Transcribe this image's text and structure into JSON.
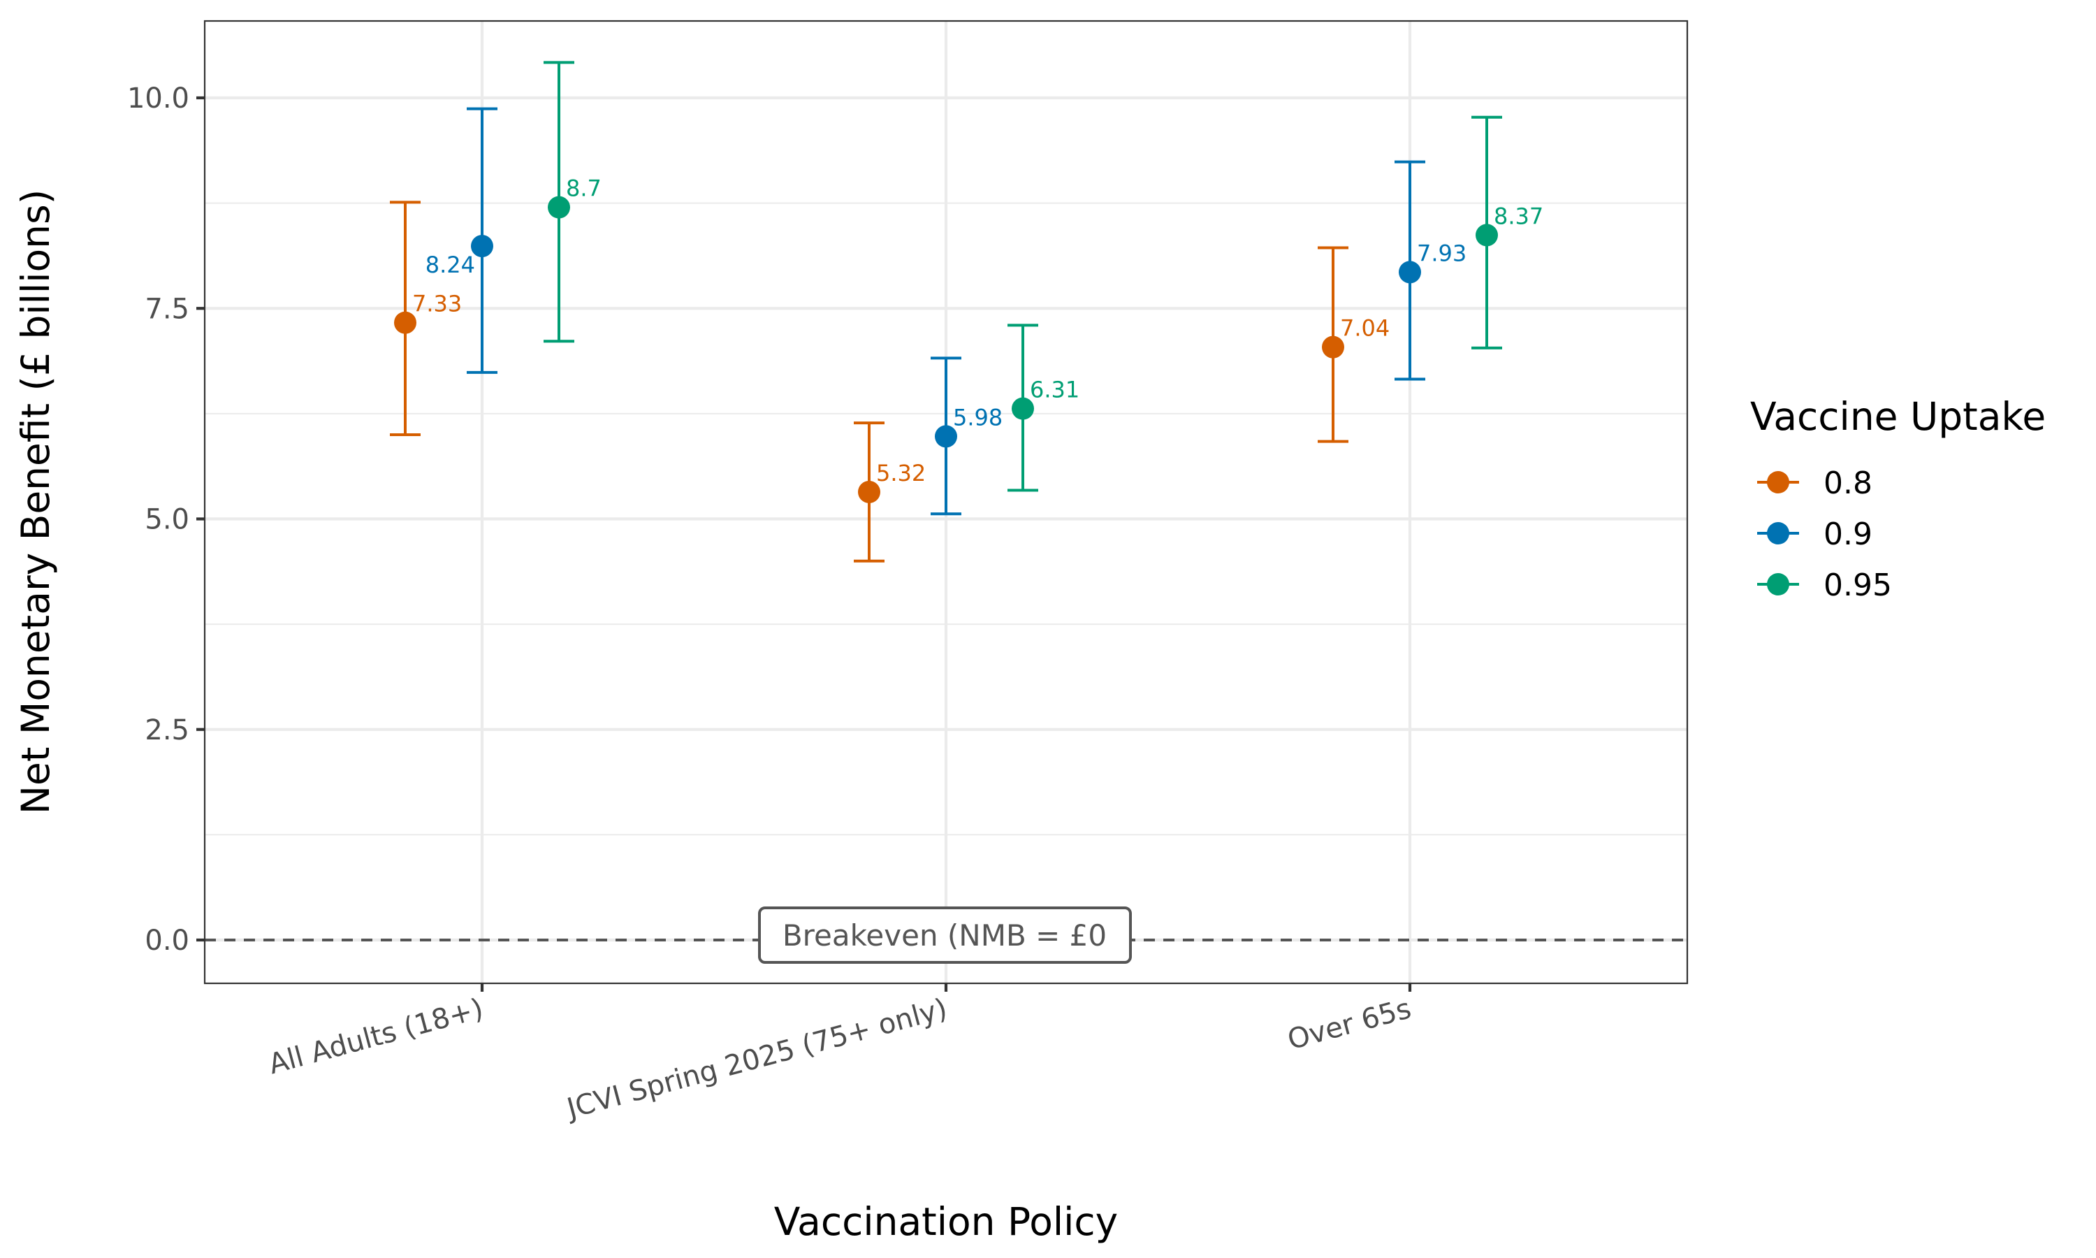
{
  "chart_data": {
    "type": "scatter",
    "subtype": "point-with-error-bars",
    "title": "",
    "xlabel": "Vaccination Policy",
    "ylabel": "Net Monetary Benefit (£ billions)",
    "categories": [
      "All Adults (18+)",
      "JCVI Spring 2025 (75+ only)",
      "Over 65s"
    ],
    "ylim": [
      -0.5,
      10.9
    ],
    "yticks": [
      0.0,
      2.5,
      5.0,
      7.5,
      10.0
    ],
    "ytick_labels": [
      "0.0",
      "2.5",
      "5.0",
      "7.5",
      "10.0"
    ],
    "grid": true,
    "legend": {
      "title": "Vaccine Uptake",
      "position": "right"
    },
    "series": [
      {
        "name": "0.8",
        "color": "#D55E00",
        "values": [
          7.33,
          5.32,
          7.04
        ],
        "lower": [
          6.0,
          4.5,
          5.92
        ],
        "upper": [
          8.76,
          6.14,
          8.22
        ],
        "labels": [
          "7.33",
          "5.32",
          "7.04"
        ]
      },
      {
        "name": "0.9",
        "color": "#0072B2",
        "values": [
          8.24,
          5.98,
          7.93
        ],
        "lower": [
          6.74,
          5.06,
          6.66
        ],
        "upper": [
          9.87,
          6.91,
          9.24
        ],
        "labels": [
          "8.24",
          "5.98",
          "7.93"
        ]
      },
      {
        "name": "0.95",
        "color": "#009E73",
        "values": [
          8.7,
          6.31,
          8.37
        ],
        "lower": [
          7.11,
          5.34,
          7.03
        ],
        "upper": [
          10.42,
          7.3,
          9.77
        ],
        "labels": [
          "8.7",
          "6.31",
          "8.37"
        ]
      }
    ],
    "reference_line": {
      "y": 0,
      "style": "dashed",
      "label": "Breakeven (NMB = £0"
    }
  }
}
